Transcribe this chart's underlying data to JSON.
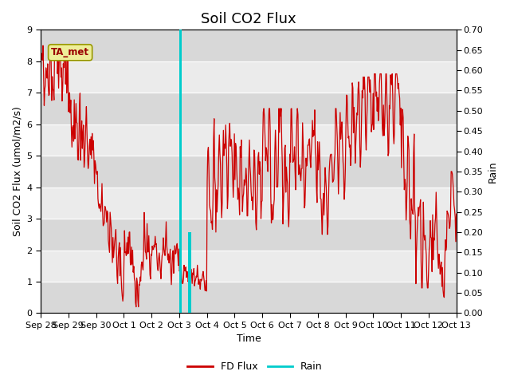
{
  "title": "Soil CO2 Flux",
  "xlabel": "Time",
  "ylabel_left": "Soil CO2 Flux (umol/m2/s)",
  "ylabel_right": "Rain",
  "ylim_left": [
    0.0,
    9.0
  ],
  "ylim_right": [
    0.0,
    0.7
  ],
  "yticks_left": [
    0.0,
    1.0,
    2.0,
    3.0,
    4.0,
    5.0,
    6.0,
    7.0,
    8.0,
    9.0
  ],
  "yticks_right": [
    0.0,
    0.05,
    0.1,
    0.15,
    0.2,
    0.25,
    0.3,
    0.35,
    0.4,
    0.45,
    0.5,
    0.55,
    0.6,
    0.65,
    0.7
  ],
  "x_tick_labels": [
    "Sep 28",
    "Sep 29",
    "Sep 30",
    "Oct 1",
    "Oct 2",
    "Oct 3",
    "Oct 4",
    "Oct 5",
    "Oct 6",
    "Oct 7",
    "Oct 8",
    "Oct 9",
    "Oct 10",
    "Oct 11",
    "Oct 12",
    "Oct 13"
  ],
  "fd_flux_color": "#cc0000",
  "rain_color": "#00cccc",
  "background_color": "#ffffff",
  "plot_bg_light": "#ebebeb",
  "plot_bg_dark": "#d8d8d8",
  "grid_color": "#ffffff",
  "annotation_text": "TA_met",
  "annotation_bg": "#eeee99",
  "annotation_border": "#999900",
  "legend_fd_label": "FD Flux",
  "legend_rain_label": "Rain",
  "title_fontsize": 13,
  "axis_label_fontsize": 9,
  "tick_fontsize": 8
}
